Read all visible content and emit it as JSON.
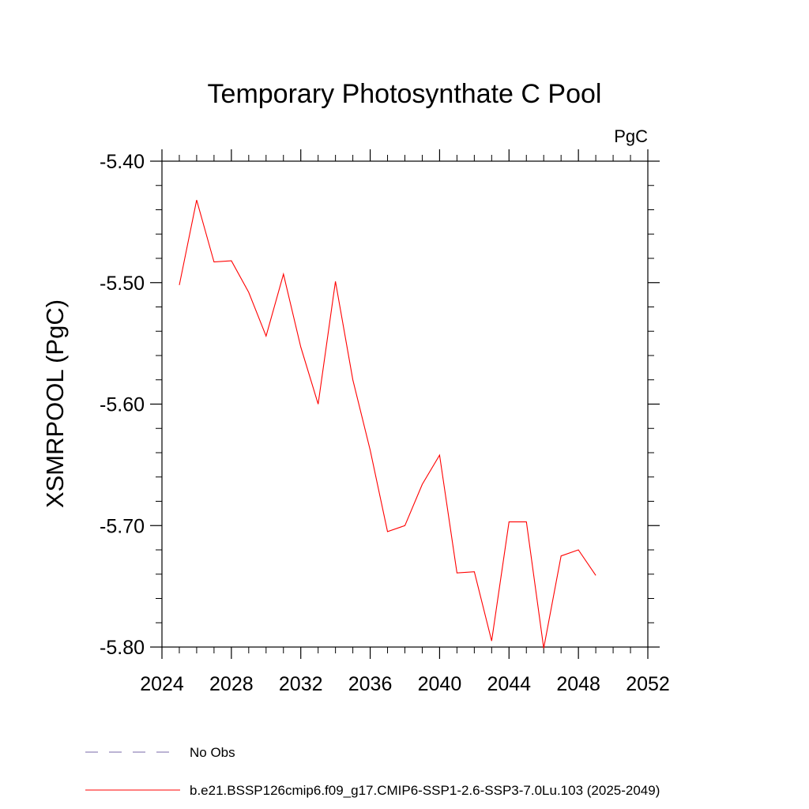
{
  "chart_data": {
    "type": "line",
    "title": "Temporary Photosynthate C Pool",
    "units_label": "PgC",
    "ylabel": "XSMRPOOL  (PgC)",
    "xlabel": "",
    "xlim": [
      2024,
      2052
    ],
    "ylim": [
      -5.8,
      -5.4
    ],
    "x_ticks": [
      {
        "value": 2024,
        "label": "2024"
      },
      {
        "value": 2028,
        "label": "2028"
      },
      {
        "value": 2032,
        "label": "2032"
      },
      {
        "value": 2036,
        "label": "2036"
      },
      {
        "value": 2040,
        "label": "2040"
      },
      {
        "value": 2044,
        "label": "2044"
      },
      {
        "value": 2048,
        "label": "2048"
      },
      {
        "value": 2052,
        "label": "2052"
      }
    ],
    "y_ticks": [
      {
        "value": -5.4,
        "label": "-5.40"
      },
      {
        "value": -5.5,
        "label": "-5.50"
      },
      {
        "value": -5.6,
        "label": "-5.60"
      },
      {
        "value": -5.7,
        "label": "-5.70"
      },
      {
        "value": -5.8,
        "label": "-5.80"
      }
    ],
    "grid": false,
    "legend_position": "bottom-left",
    "series": [
      {
        "name": "b.e21.BSSP126cmip6.f09_g17.CMIP6-SSP1-2.6-SSP3-7.0Lu.103 (2025-2049)",
        "color": "#ff0000",
        "x": [
          2025,
          2026,
          2027,
          2028,
          2029,
          2030,
          2031,
          2032,
          2033,
          2034,
          2035,
          2036,
          2037,
          2038,
          2039,
          2040,
          2041,
          2042,
          2043,
          2044,
          2045,
          2046,
          2047,
          2048,
          2049
        ],
        "values": [
          -5.502,
          -5.432,
          -5.483,
          -5.482,
          -5.508,
          -5.544,
          -5.493,
          -5.553,
          -5.6,
          -5.499,
          -5.58,
          -5.638,
          -5.705,
          -5.7,
          -5.666,
          -5.642,
          -5.739,
          -5.738,
          -5.795,
          -5.697,
          -5.697,
          -5.801,
          -5.725,
          -5.72,
          -5.741
        ]
      }
    ],
    "legend": [
      {
        "label": "No Obs",
        "color": "#7a6aa8",
        "style": "dashed"
      },
      {
        "label": "b.e21.BSSP126cmip6.f09_g17.CMIP6-SSP1-2.6-SSP3-7.0Lu.103 (2025-2049)",
        "color": "#ff0000",
        "style": "solid"
      }
    ]
  }
}
